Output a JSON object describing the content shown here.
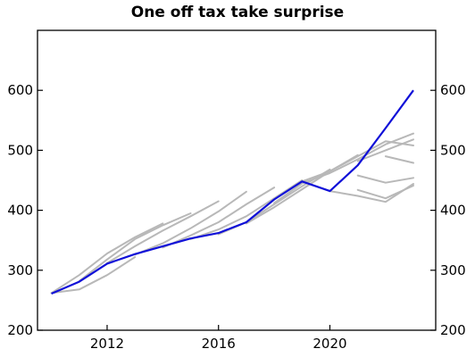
{
  "chart_data": {
    "type": "line",
    "title": "One off tax take surprise",
    "xlabel": "",
    "ylabel": "",
    "xlim": [
      2009.5,
      2023.8
    ],
    "ylim": [
      200,
      700
    ],
    "x_ticks": [
      2012,
      2016,
      2020
    ],
    "y_ticks": [
      200,
      300,
      400,
      500,
      600
    ],
    "grid": false,
    "colors": {
      "main": "#1010d8",
      "vintages": "#b8b8b8"
    },
    "series": [
      {
        "x": [
          2010,
          2011,
          2012,
          2013
        ],
        "values": [
          262,
          268,
          292,
          322
        ],
        "color": "#b8b8b8"
      },
      {
        "x": [
          2010,
          2011,
          2012,
          2013,
          2014
        ],
        "values": [
          262,
          292,
          328,
          355,
          378
        ],
        "color": "#b8b8b8"
      },
      {
        "x": [
          2011,
          2012,
          2013,
          2014,
          2015
        ],
        "values": [
          282,
          318,
          352,
          375,
          395
        ],
        "color": "#b8b8b8"
      },
      {
        "x": [
          2012,
          2013,
          2014,
          2015,
          2016
        ],
        "values": [
          312,
          340,
          366,
          390,
          415
        ],
        "color": "#b8b8b8"
      },
      {
        "x": [
          2013,
          2014,
          2015,
          2016,
          2017
        ],
        "values": [
          326,
          345,
          370,
          398,
          431
        ],
        "color": "#b8b8b8"
      },
      {
        "x": [
          2014,
          2015,
          2016,
          2017,
          2018
        ],
        "values": [
          338,
          358,
          380,
          410,
          438
        ],
        "color": "#b8b8b8"
      },
      {
        "x": [
          2015,
          2016,
          2017,
          2018,
          2019
        ],
        "values": [
          352,
          368,
          390,
          420,
          450
        ],
        "color": "#b8b8b8"
      },
      {
        "x": [
          2016,
          2017,
          2018,
          2019,
          2020
        ],
        "values": [
          360,
          380,
          410,
          440,
          468
        ],
        "color": "#b8b8b8"
      },
      {
        "x": [
          2017,
          2018,
          2019,
          2020,
          2021
        ],
        "values": [
          378,
          405,
          435,
          465,
          492
        ],
        "color": "#b8b8b8"
      },
      {
        "x": [
          2018,
          2019,
          2020,
          2021,
          2022,
          2023
        ],
        "values": [
          412,
          445,
          462,
          485,
          510,
          528
        ],
        "color": "#b8b8b8"
      },
      {
        "x": [
          2019,
          2020,
          2021,
          2022,
          2023
        ],
        "values": [
          448,
          465,
          490,
          515,
          508
        ],
        "color": "#b8b8b8"
      },
      {
        "x": [
          2020,
          2021,
          2022,
          2023
        ],
        "values": [
          432,
          424,
          414,
          444
        ],
        "color": "#b8b8b8"
      },
      {
        "x": [
          2021,
          2022,
          2023
        ],
        "values": [
          434,
          420,
          441
        ],
        "color": "#b8b8b8"
      },
      {
        "x": [
          2021,
          2022,
          2023
        ],
        "values": [
          458,
          446,
          454
        ],
        "color": "#b8b8b8"
      },
      {
        "x": [
          2021,
          2022,
          2023
        ],
        "values": [
          482,
          500,
          518
        ],
        "color": "#b8b8b8"
      },
      {
        "x": [
          2022,
          2023
        ],
        "values": [
          490,
          479
        ],
        "color": "#b8b8b8"
      },
      {
        "x": [
          2010,
          2011,
          2012,
          2013,
          2014,
          2015,
          2016,
          2017,
          2018,
          2019,
          2020,
          2021,
          2022,
          2023
        ],
        "values": [
          261,
          281,
          311,
          327,
          340,
          353,
          362,
          380,
          418,
          448,
          432,
          475,
          537,
          600
        ],
        "color": "#1010d8"
      }
    ]
  }
}
